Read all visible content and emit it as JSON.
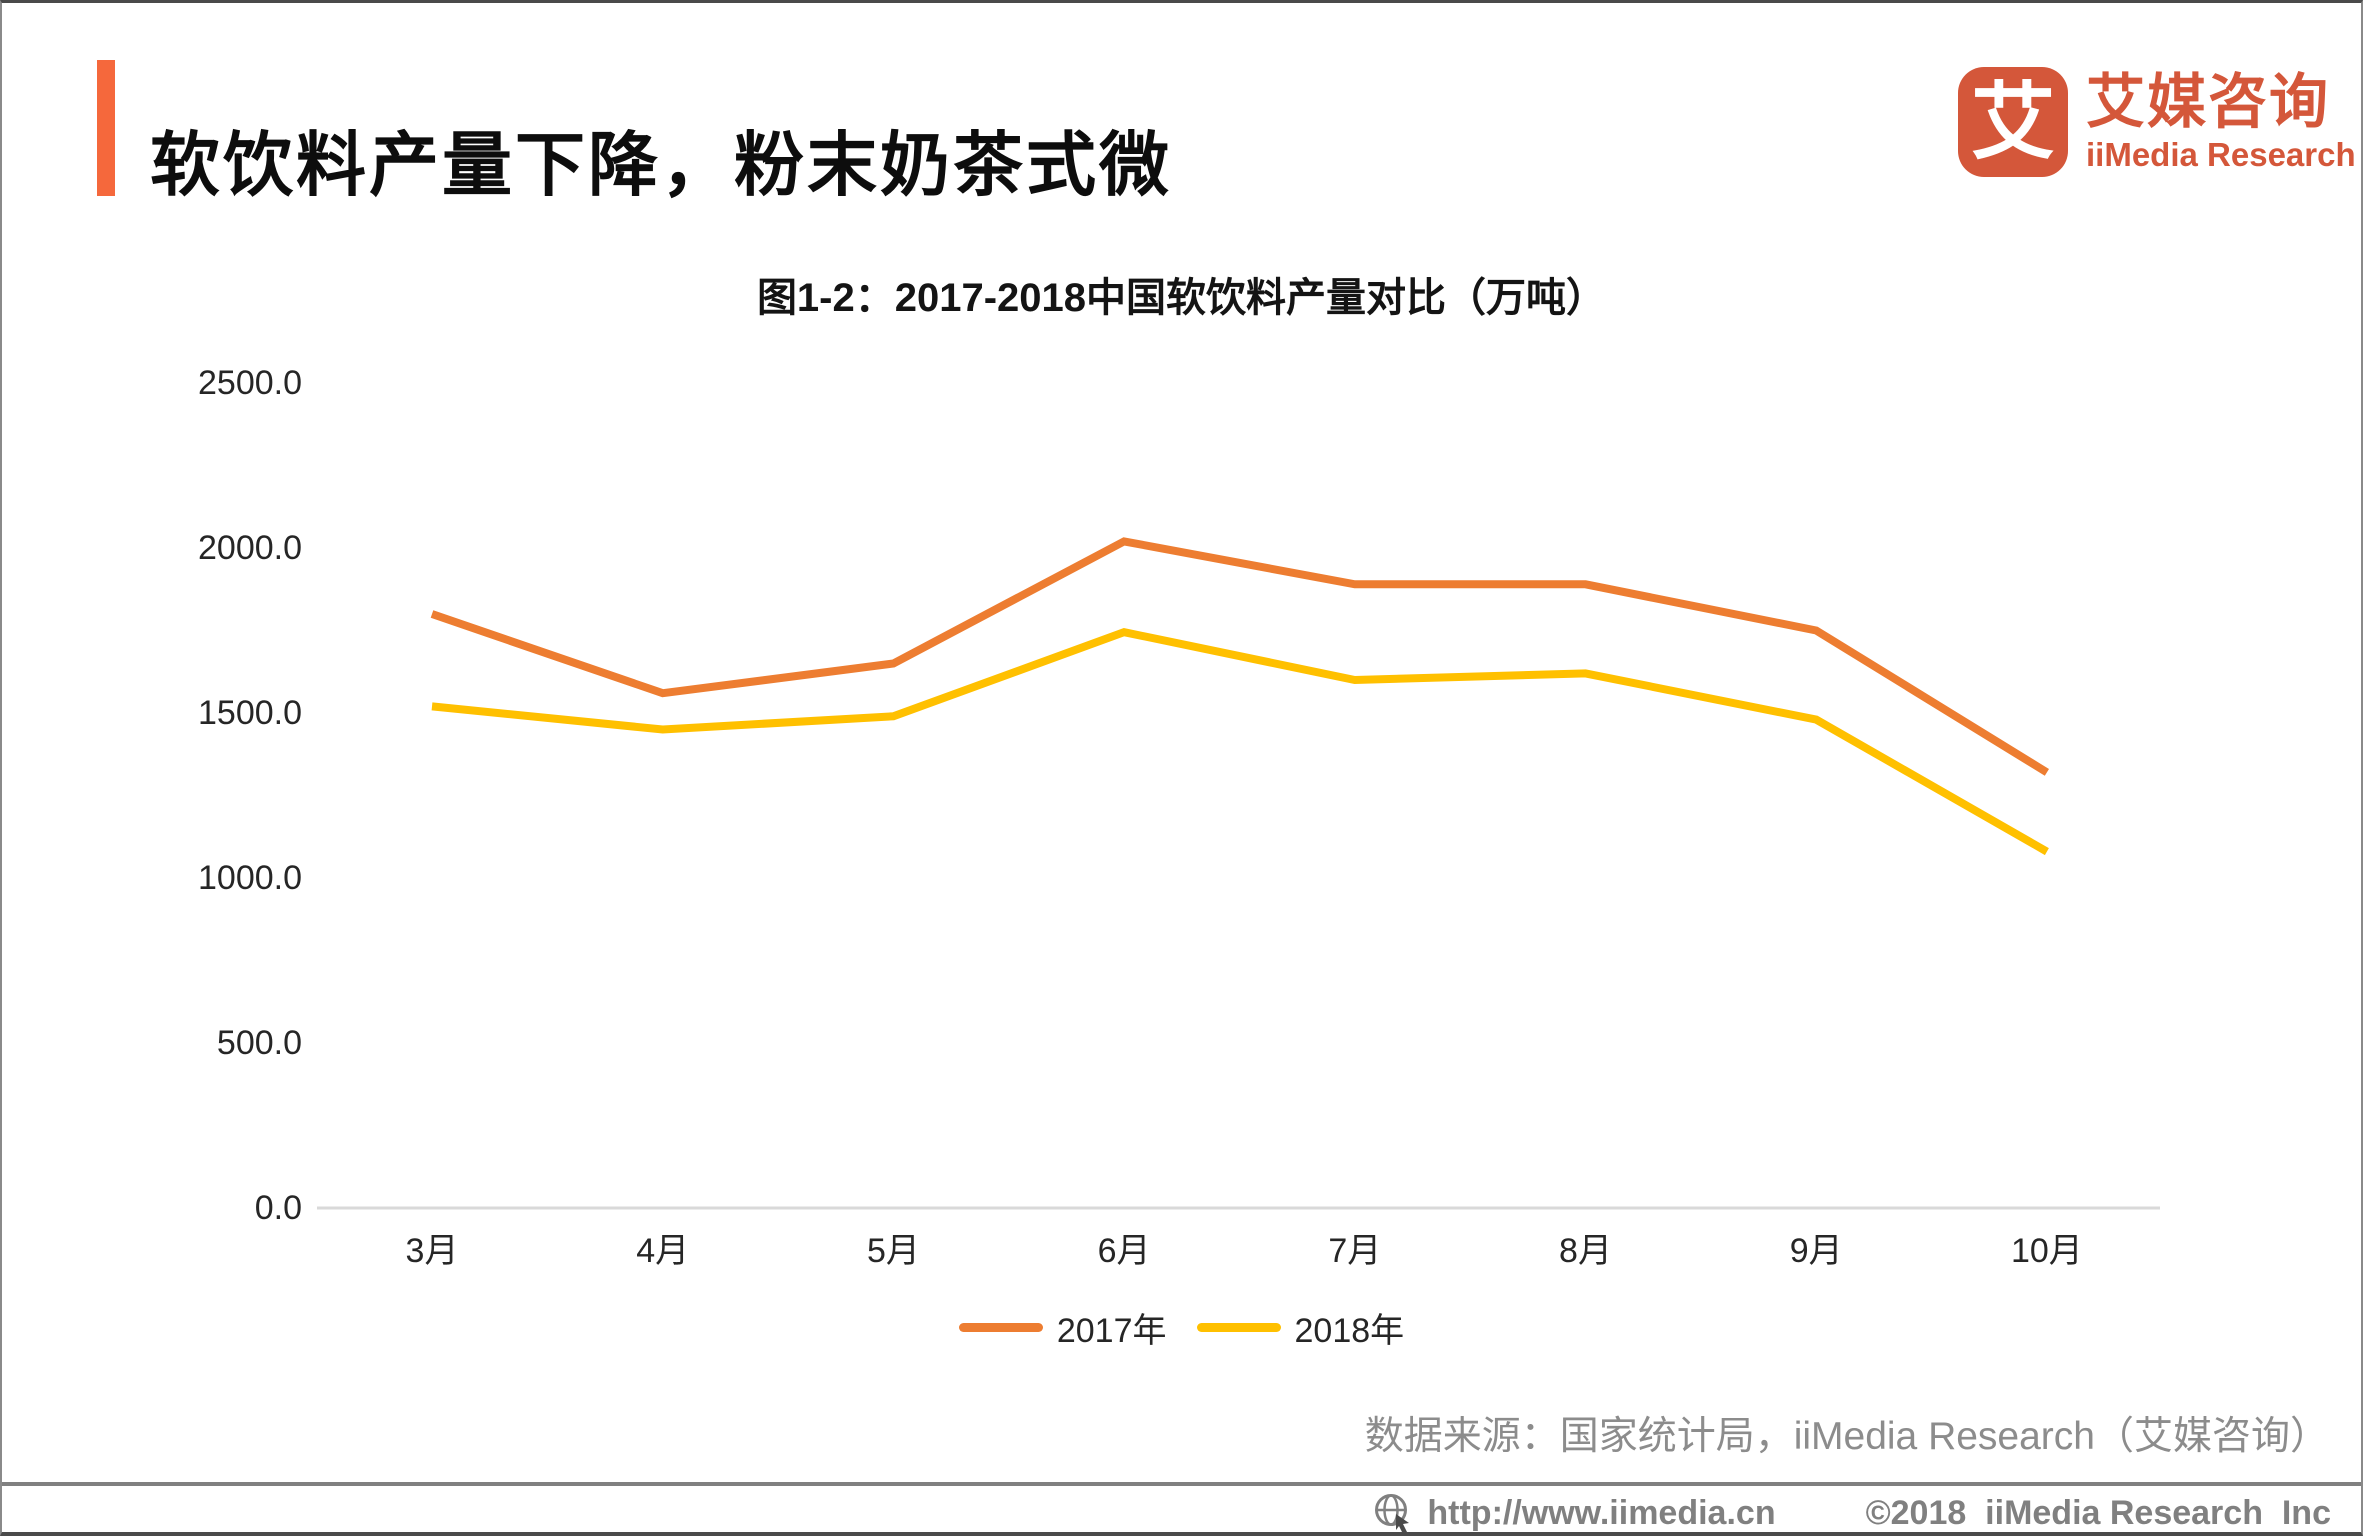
{
  "page": {
    "title_bar": {
      "title": "软饮料产量下降，粉末奶茶式微"
    },
    "logo": {
      "icon_glyph": "艾",
      "brand_zh": "艾媒咨询",
      "brand_en": "iiMedia Research"
    },
    "source_note": "数据来源：国家统计局，iiMedia Research（艾媒咨询）",
    "footer": {
      "url": "http://www.iimedia.cn",
      "copyright": "©2018  iiMedia Research  Inc"
    },
    "colors": {
      "accent": "#F5683C",
      "brand": "#D4573A",
      "axis_line": "#D9D9D9",
      "muted_text": "#8C8C8C",
      "series_2017": "#ED7D31",
      "series_2018": "#FFC000"
    }
  },
  "chart_data": {
    "type": "line",
    "title": "图1-2：2017-2018中国软饮料产量对比（万吨）",
    "unit": "万吨",
    "categories": [
      "3月",
      "4月",
      "5月",
      "6月",
      "7月",
      "8月",
      "9月",
      "10月"
    ],
    "series": [
      {
        "name": "2017年",
        "color": "#ED7D31",
        "values": [
          1800,
          1560,
          1650,
          2020,
          1890,
          1890,
          1750,
          1320
        ]
      },
      {
        "name": "2018年",
        "color": "#FFC000",
        "values": [
          1520,
          1450,
          1490,
          1745,
          1600,
          1620,
          1480,
          1080
        ]
      }
    ],
    "yaxis": {
      "min": 0,
      "max": 2500,
      "step": 500,
      "tick_format_decimals": 1
    },
    "xlabel": "",
    "ylabel": "",
    "grid": false,
    "legend_position": "bottom"
  }
}
